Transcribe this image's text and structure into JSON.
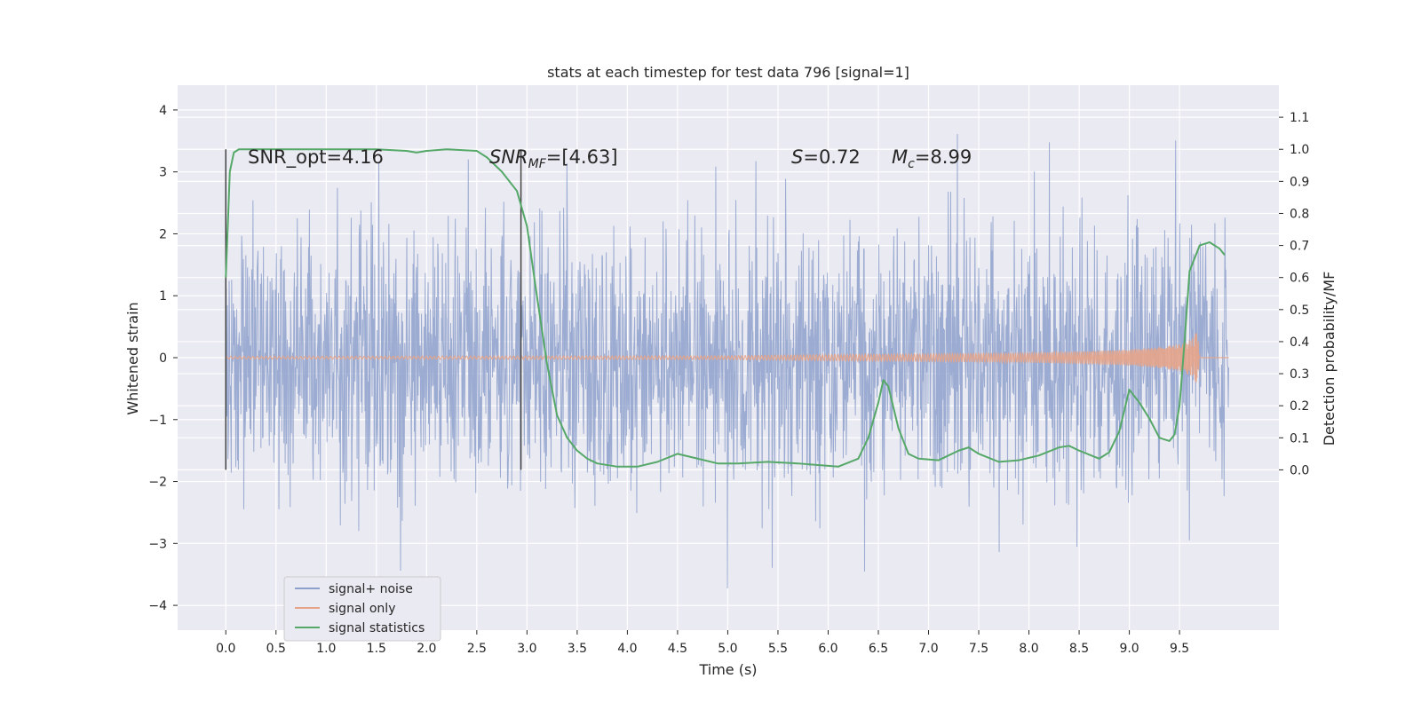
{
  "chart_data": {
    "type": "line",
    "title": "stats at each timestep for test data 796 [signal=1]",
    "xlabel": "Time (s)",
    "ylabel": "Whitened strain",
    "ylabel_right": "Detection probability/MF",
    "xlim": [
      -0.48,
      10.49
    ],
    "ylim": [
      -4.4,
      4.4
    ],
    "ylim_right": [
      -0.5,
      1.2
    ],
    "x_ticks": [
      "0.0",
      "0.5",
      "1.0",
      "1.5",
      "2.0",
      "2.5",
      "3.0",
      "3.5",
      "4.0",
      "4.5",
      "5.0",
      "5.5",
      "6.0",
      "6.5",
      "7.0",
      "7.5",
      "8.0",
      "8.5",
      "9.0",
      "9.5"
    ],
    "y_ticks": [
      "4",
      "3",
      "2",
      "1",
      "0",
      "−1",
      "−2",
      "−3",
      "−4"
    ],
    "y_ticks_right": [
      "1.1",
      "1.0",
      "0.9",
      "0.8",
      "0.7",
      "0.6",
      "0.5",
      "0.4",
      "0.3",
      "0.2",
      "0.1",
      "0.0"
    ],
    "grid": true,
    "legend_position": "lower-left",
    "annotations": {
      "snr_opt": "SNR_opt=4.16",
      "snr_mf_main": "SNR",
      "snr_mf_sub": "MF",
      "snr_mf_value": "=[4.63]",
      "s_italic": "S",
      "s_value": "=0.72",
      "mc_main": "M",
      "mc_sub": "c",
      "mc_value": "=8.99"
    },
    "vertical_lines_x": [
      0.0,
      2.94
    ],
    "series": [
      {
        "name": "signal+ noise",
        "color": "#8da0cb",
        "description": "whitened strain, dense noise band approx ±3.5 over 0–10 s",
        "x_range": [
          0.0,
          9.99
        ],
        "amplitude_std": 1.0
      },
      {
        "name": "signal only",
        "color": "#e5a48a",
        "envelope": {
          "t": [
            0.0,
            5.0,
            6.0,
            7.0,
            8.0,
            8.5,
            9.0,
            9.3,
            9.5,
            9.62,
            9.68,
            9.7
          ],
          "amp": [
            0.02,
            0.03,
            0.05,
            0.06,
            0.08,
            0.1,
            0.13,
            0.17,
            0.22,
            0.3,
            0.45,
            0.0
          ]
        },
        "after_merger_x": [
          9.7,
          9.99
        ],
        "after_merger_value": 0.0
      },
      {
        "name": "signal statistics",
        "color": "#55a868",
        "x": [
          0.0,
          0.04,
          0.08,
          0.13,
          0.2,
          0.3,
          0.6,
          1.0,
          1.5,
          1.8,
          1.9,
          2.0,
          2.2,
          2.5,
          2.6,
          2.75,
          2.9,
          3.0,
          3.1,
          3.2,
          3.3,
          3.4,
          3.5,
          3.6,
          3.7,
          3.9,
          4.1,
          4.3,
          4.5,
          4.7,
          4.9,
          5.1,
          5.4,
          5.7,
          5.9,
          6.1,
          6.3,
          6.4,
          6.5,
          6.55,
          6.6,
          6.7,
          6.8,
          6.9,
          7.1,
          7.3,
          7.4,
          7.5,
          7.7,
          7.9,
          8.1,
          8.3,
          8.4,
          8.5,
          8.7,
          8.8,
          8.9,
          9.0,
          9.1,
          9.2,
          9.3,
          9.4,
          9.45,
          9.5,
          9.55,
          9.6,
          9.7,
          9.8,
          9.9,
          9.95
        ],
        "y": [
          0.6,
          0.93,
          0.99,
          1.0,
          1.0,
          1.0,
          1.0,
          1.0,
          1.0,
          0.995,
          0.99,
          0.995,
          1.0,
          0.995,
          0.975,
          0.93,
          0.87,
          0.76,
          0.54,
          0.33,
          0.17,
          0.1,
          0.06,
          0.035,
          0.02,
          0.01,
          0.01,
          0.025,
          0.05,
          0.035,
          0.02,
          0.02,
          0.025,
          0.02,
          0.015,
          0.01,
          0.035,
          0.1,
          0.21,
          0.28,
          0.26,
          0.13,
          0.05,
          0.035,
          0.03,
          0.06,
          0.07,
          0.05,
          0.025,
          0.03,
          0.045,
          0.07,
          0.075,
          0.06,
          0.035,
          0.055,
          0.12,
          0.25,
          0.21,
          0.16,
          0.1,
          0.09,
          0.11,
          0.2,
          0.4,
          0.62,
          0.7,
          0.71,
          0.69,
          0.67
        ]
      }
    ]
  }
}
